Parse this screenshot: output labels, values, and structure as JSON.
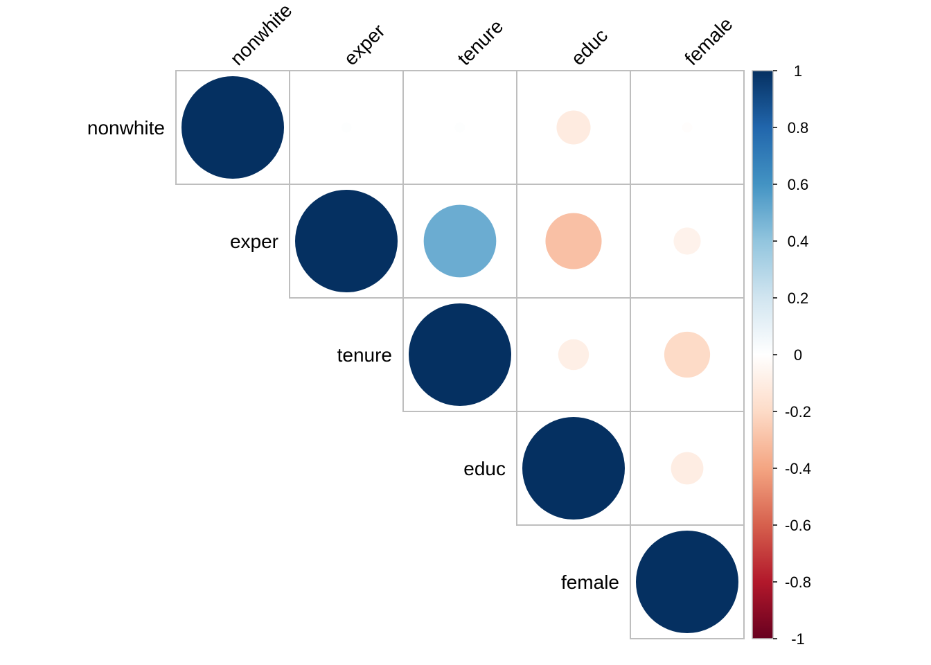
{
  "chart_data": {
    "type": "heatmap",
    "style": "correlation-matrix-circles-upper-triangle",
    "variables": [
      "nonwhite",
      "exper",
      "tenure",
      "educ",
      "female"
    ],
    "matrix": [
      [
        1.0,
        0.01,
        0.01,
        -0.11,
        -0.01
      ],
      [
        0.01,
        1.0,
        0.5,
        -0.3,
        -0.07
      ],
      [
        0.01,
        0.5,
        1.0,
        -0.09,
        -0.2
      ],
      [
        -0.11,
        -0.3,
        -0.09,
        1.0,
        -0.1
      ],
      [
        -0.01,
        -0.07,
        -0.2,
        -0.1,
        1.0
      ]
    ],
    "color_scale": {
      "range": [
        -1,
        1
      ],
      "ticks": [
        "1",
        "0.8",
        "0.6",
        "0.4",
        "0.2",
        "0",
        "-0.2",
        "-0.4",
        "-0.6",
        "-0.8",
        "-1"
      ],
      "stops": [
        {
          "value": -1.0,
          "color": "#67001F"
        },
        {
          "value": -0.8,
          "color": "#B2182B"
        },
        {
          "value": -0.6,
          "color": "#D6604D"
        },
        {
          "value": -0.4,
          "color": "#F4A582"
        },
        {
          "value": -0.2,
          "color": "#FDDBC7"
        },
        {
          "value": 0.0,
          "color": "#FFFFFF"
        },
        {
          "value": 0.2,
          "color": "#D1E5F0"
        },
        {
          "value": 0.4,
          "color": "#92C5DE"
        },
        {
          "value": 0.6,
          "color": "#4393C3"
        },
        {
          "value": 0.8,
          "color": "#2166AC"
        },
        {
          "value": 1.0,
          "color": "#053061"
        }
      ]
    },
    "grid_color": "#BEBEBE",
    "legend_placement": "right",
    "title": "",
    "xlabel": "",
    "ylabel": ""
  }
}
